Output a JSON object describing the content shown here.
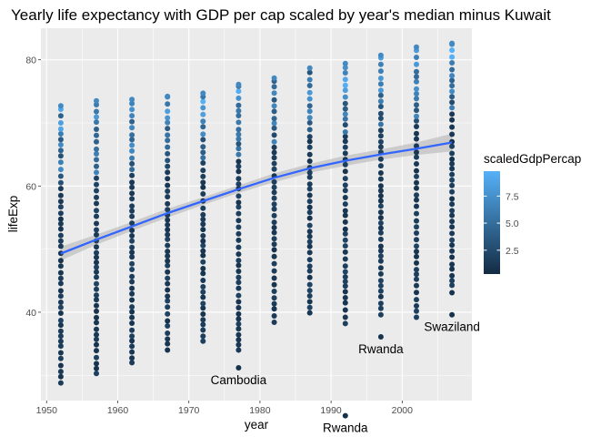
{
  "chart_data": {
    "type": "scatter",
    "title": "Yearly life expectancy with GDP per cap scaled by year's median minus Kuwait",
    "xlabel": "year",
    "ylabel": "lifeExp",
    "xlim": [
      1949.2,
      2009.8
    ],
    "ylim": [
      26.0,
      85.0
    ],
    "x_ticks": [
      1950,
      1960,
      1970,
      1980,
      1990,
      2000
    ],
    "y_ticks": [
      40,
      60,
      80
    ],
    "grid": true,
    "legend": {
      "title": "scaledGdpPercap",
      "position": "right",
      "ticks": [
        2.5,
        5.0,
        7.5
      ],
      "tick_labels": [
        "2.5",
        "5.0",
        "7.5"
      ],
      "range": [
        0.3,
        9.8
      ],
      "low_color": "#132B43",
      "high_color": "#56B1F7"
    },
    "colors": {
      "panel": "#EBEBEB",
      "grid": "#FFFFFF",
      "smooth_line": "#3366FF",
      "ribbon": "#BEBEBE",
      "point_low": "#132B43",
      "point_high": "#56B1F7"
    },
    "years": [
      1952,
      1957,
      1962,
      1967,
      1972,
      1977,
      1982,
      1987,
      1992,
      1997,
      2002,
      2007
    ],
    "lifeExp_ranges": [
      {
        "year": 1952,
        "min": 28.8,
        "max": 72.7
      },
      {
        "year": 1957,
        "min": 30.3,
        "max": 73.5
      },
      {
        "year": 1962,
        "min": 32.0,
        "max": 73.7
      },
      {
        "year": 1967,
        "min": 34.0,
        "max": 74.2
      },
      {
        "year": 1972,
        "min": 35.4,
        "max": 74.7
      },
      {
        "year": 1977,
        "min": 31.2,
        "max": 76.1
      },
      {
        "year": 1982,
        "min": 38.4,
        "max": 77.1
      },
      {
        "year": 1987,
        "min": 39.9,
        "max": 78.7
      },
      {
        "year": 1992,
        "min": 23.6,
        "max": 79.4
      },
      {
        "year": 1997,
        "min": 36.1,
        "max": 80.7
      },
      {
        "year": 2002,
        "min": 39.2,
        "max": 82.0
      },
      {
        "year": 2007,
        "min": 39.6,
        "max": 82.6
      }
    ],
    "smooth": {
      "x": [
        1952,
        1957,
        1962,
        1967,
        1972,
        1977,
        1982,
        1987,
        1992,
        1997,
        2002,
        2007
      ],
      "y": [
        49.3,
        51.5,
        53.6,
        55.7,
        57.6,
        59.5,
        61.3,
        62.8,
        64.0,
        65.0,
        65.9,
        66.9
      ],
      "ci_low": [
        48.2,
        50.7,
        52.9,
        55.0,
        57.0,
        58.9,
        60.6,
        62.1,
        63.2,
        64.2,
        64.9,
        65.5
      ],
      "ci_high": [
        50.4,
        52.3,
        54.3,
        56.4,
        58.2,
        60.1,
        62.0,
        63.5,
        64.8,
        65.8,
        66.9,
        68.3
      ]
    },
    "annotations": [
      {
        "text": "Cambodia",
        "year": 1977,
        "lifeExp": 31.2
      },
      {
        "text": "Rwanda",
        "year": 1992,
        "lifeExp": 23.6
      },
      {
        "text": "Rwanda",
        "year": 1997,
        "lifeExp": 36.1
      },
      {
        "text": "Swaziland",
        "year": 2007,
        "lifeExp": 39.6
      }
    ]
  }
}
